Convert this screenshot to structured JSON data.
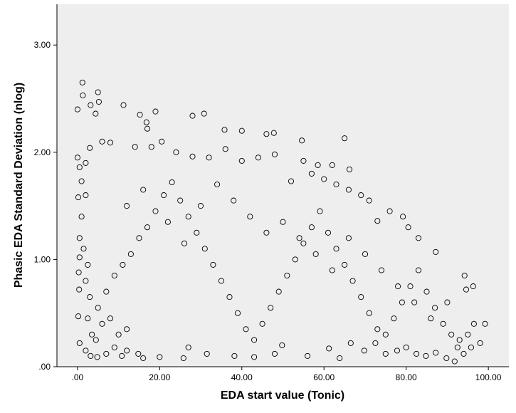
{
  "chart_data": {
    "type": "scatter",
    "title": "",
    "xlabel": "EDA start value (Tonic)",
    "ylabel": "Phasic EDA Standard Deviation (nlog)",
    "xlim": [
      -5,
      105
    ],
    "ylim": [
      0,
      3.38
    ],
    "x_ticks": [
      0,
      20,
      40,
      60,
      80,
      100
    ],
    "x_tick_labels": [
      ".00",
      "20.00",
      "40.00",
      "60.00",
      "80.00",
      "100.00"
    ],
    "y_ticks": [
      0,
      1,
      2,
      3
    ],
    "y_tick_labels": [
      ".00",
      "1.00",
      "2.00",
      "3.00"
    ],
    "grid": false,
    "legend": "none",
    "colors": {
      "plot_background": "#eeeeee",
      "marker_stroke": "#000000",
      "axis": "#000000"
    },
    "series": [
      {
        "marker": "open-circle",
        "points": [
          [
            0,
            2.4
          ],
          [
            1.2,
            2.65
          ],
          [
            1.3,
            2.53
          ],
          [
            3.2,
            2.44
          ],
          [
            5.0,
            2.56
          ],
          [
            5.2,
            2.47
          ],
          [
            4.4,
            2.36
          ],
          [
            11.2,
            2.44
          ],
          [
            15.2,
            2.35
          ],
          [
            16.8,
            2.28
          ],
          [
            17.0,
            2.22
          ],
          [
            19.0,
            2.38
          ],
          [
            28.0,
            2.34
          ],
          [
            30.8,
            2.36
          ],
          [
            35.8,
            2.21
          ],
          [
            40.0,
            2.2
          ],
          [
            46.0,
            2.17
          ],
          [
            47.8,
            2.18
          ],
          [
            54.6,
            2.11
          ],
          [
            65.0,
            2.13
          ],
          [
            66.2,
            1.84
          ],
          [
            0,
            1.95
          ],
          [
            0.5,
            1.86
          ],
          [
            0.2,
            1.58
          ],
          [
            0.5,
            1.02
          ],
          [
            0.3,
            0.88
          ],
          [
            0.4,
            0.72
          ],
          [
            0.2,
            0.47
          ],
          [
            0.5,
            0.22
          ],
          [
            2.0,
            0.15
          ],
          [
            3.2,
            0.1
          ],
          [
            4.8,
            0.09
          ],
          [
            7.0,
            0.12
          ],
          [
            9.0,
            0.18
          ],
          [
            10.8,
            0.1
          ],
          [
            12.0,
            0.15
          ],
          [
            14.8,
            0.12
          ],
          [
            16.0,
            0.08
          ],
          [
            20.0,
            0.09
          ],
          [
            25.8,
            0.08
          ],
          [
            27.0,
            0.18
          ],
          [
            31.5,
            0.12
          ],
          [
            38.2,
            0.1
          ],
          [
            43.0,
            0.09
          ],
          [
            48.0,
            0.12
          ],
          [
            49.8,
            0.2
          ],
          [
            56.0,
            0.1
          ],
          [
            61.2,
            0.17
          ],
          [
            63.8,
            0.08
          ],
          [
            66.5,
            0.22
          ],
          [
            69.8,
            0.15
          ],
          [
            72.5,
            0.22
          ],
          [
            75.0,
            0.12
          ],
          [
            77.8,
            0.15
          ],
          [
            80.0,
            0.18
          ],
          [
            82.5,
            0.12
          ],
          [
            84.8,
            0.1
          ],
          [
            87.2,
            0.13
          ],
          [
            89.8,
            0.08
          ],
          [
            91.8,
            0.05
          ],
          [
            92.5,
            0.18
          ],
          [
            94.0,
            0.12
          ],
          [
            95.8,
            0.18
          ],
          [
            98.0,
            0.22
          ],
          [
            96.3,
            0.75
          ],
          [
            94.2,
            0.85
          ],
          [
            94.6,
            0.72
          ],
          [
            96.5,
            0.4
          ],
          [
            99.2,
            0.4
          ],
          [
            87.2,
            1.07
          ],
          [
            83.0,
            1.2
          ],
          [
            80.5,
            1.3
          ],
          [
            79.2,
            1.4
          ],
          [
            76.0,
            1.45
          ],
          [
            73.0,
            1.36
          ],
          [
            71.0,
            1.55
          ],
          [
            69.0,
            1.6
          ],
          [
            66.0,
            1.65
          ],
          [
            63.0,
            1.7
          ],
          [
            62.0,
            1.88
          ],
          [
            60.0,
            1.75
          ],
          [
            58.5,
            1.88
          ],
          [
            57.0,
            1.8
          ],
          [
            55.0,
            1.92
          ],
          [
            52.0,
            1.73
          ],
          [
            48.0,
            1.98
          ],
          [
            44.0,
            1.95
          ],
          [
            40.0,
            1.92
          ],
          [
            36.0,
            2.03
          ],
          [
            32.0,
            1.95
          ],
          [
            28.0,
            1.96
          ],
          [
            24.0,
            2.0
          ],
          [
            20.5,
            2.1
          ],
          [
            18.0,
            2.05
          ],
          [
            14.0,
            2.05
          ],
          [
            8.0,
            2.09
          ],
          [
            6.0,
            2.1
          ],
          [
            3.0,
            2.04
          ],
          [
            2.0,
            1.9
          ],
          [
            1.0,
            1.73
          ],
          [
            2.0,
            1.6
          ],
          [
            1.0,
            1.4
          ],
          [
            0.5,
            1.2
          ],
          [
            1.5,
            1.1
          ],
          [
            2.5,
            0.95
          ],
          [
            2.0,
            0.8
          ],
          [
            3.0,
            0.65
          ],
          [
            2.5,
            0.45
          ],
          [
            3.5,
            0.3
          ],
          [
            4.5,
            0.25
          ],
          [
            6.0,
            0.4
          ],
          [
            8.0,
            0.45
          ],
          [
            10.0,
            0.3
          ],
          [
            12.0,
            0.35
          ],
          [
            5.0,
            0.55
          ],
          [
            7.0,
            0.7
          ],
          [
            9.0,
            0.85
          ],
          [
            11.0,
            0.95
          ],
          [
            13.0,
            1.05
          ],
          [
            15.0,
            1.2
          ],
          [
            17.0,
            1.3
          ],
          [
            19.0,
            1.45
          ],
          [
            21.0,
            1.6
          ],
          [
            23.0,
            1.72
          ],
          [
            25.0,
            1.55
          ],
          [
            27.0,
            1.4
          ],
          [
            29.0,
            1.25
          ],
          [
            31.0,
            1.1
          ],
          [
            33.0,
            0.95
          ],
          [
            35.0,
            0.8
          ],
          [
            37.0,
            0.65
          ],
          [
            39.0,
            0.5
          ],
          [
            41.0,
            0.35
          ],
          [
            43.0,
            0.25
          ],
          [
            45.0,
            0.4
          ],
          [
            47.0,
            0.55
          ],
          [
            49.0,
            0.7
          ],
          [
            51.0,
            0.85
          ],
          [
            53.0,
            1.0
          ],
          [
            55.0,
            1.15
          ],
          [
            57.0,
            1.3
          ],
          [
            59.0,
            1.45
          ],
          [
            61.0,
            1.25
          ],
          [
            63.0,
            1.1
          ],
          [
            65.0,
            0.95
          ],
          [
            67.0,
            0.8
          ],
          [
            69.0,
            0.65
          ],
          [
            71.0,
            0.5
          ],
          [
            73.0,
            0.35
          ],
          [
            75.0,
            0.3
          ],
          [
            77.0,
            0.45
          ],
          [
            79.0,
            0.6
          ],
          [
            81.0,
            0.75
          ],
          [
            83.0,
            0.9
          ],
          [
            85.0,
            0.7
          ],
          [
            87.0,
            0.55
          ],
          [
            89.0,
            0.4
          ],
          [
            91.0,
            0.3
          ],
          [
            93.0,
            0.25
          ],
          [
            95.0,
            0.3
          ],
          [
            12.0,
            1.5
          ],
          [
            16.0,
            1.65
          ],
          [
            22.0,
            1.35
          ],
          [
            26.0,
            1.15
          ],
          [
            30.0,
            1.5
          ],
          [
            34.0,
            1.7
          ],
          [
            38.0,
            1.55
          ],
          [
            42.0,
            1.4
          ],
          [
            46.0,
            1.25
          ],
          [
            50.0,
            1.35
          ],
          [
            54.0,
            1.2
          ],
          [
            58.0,
            1.05
          ],
          [
            62.0,
            0.9
          ],
          [
            66.0,
            1.2
          ],
          [
            70.0,
            1.05
          ],
          [
            74.0,
            0.9
          ],
          [
            78.0,
            0.75
          ],
          [
            82.0,
            0.6
          ],
          [
            86.0,
            0.45
          ],
          [
            90.0,
            0.6
          ]
        ]
      }
    ]
  }
}
